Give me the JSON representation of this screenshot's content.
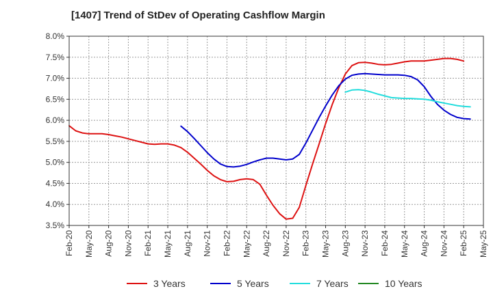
{
  "chart_data": {
    "type": "line",
    "title": "[1407]  Trend of StDev of Operating Cashflow Margin",
    "xlabel": "",
    "ylabel": "",
    "ylim": [
      3.5,
      8.0
    ],
    "y_ticks": [
      "3.5%",
      "4.0%",
      "4.5%",
      "5.0%",
      "5.5%",
      "6.0%",
      "6.5%",
      "7.0%",
      "7.5%",
      "8.0%"
    ],
    "y_tick_values": [
      3.5,
      4.0,
      4.5,
      5.0,
      5.5,
      6.0,
      6.5,
      7.0,
      7.5,
      8.0
    ],
    "x_start": "Feb-20",
    "x_end": "May-25",
    "x_ticks": [
      "Feb-20",
      "May-20",
      "Aug-20",
      "Nov-20",
      "Feb-21",
      "May-21",
      "Aug-21",
      "Nov-21",
      "Feb-22",
      "May-22",
      "Aug-22",
      "Nov-22",
      "Feb-23",
      "May-23",
      "Aug-23",
      "Nov-23",
      "Feb-24",
      "May-24",
      "Aug-24",
      "Nov-24",
      "Feb-25",
      "May-25"
    ],
    "grid": true,
    "legend_position": "bottom",
    "series": [
      {
        "name": "3 Years",
        "color": "#dd1111",
        "points": [
          [
            "Feb-20",
            5.87
          ],
          [
            "Mar-20",
            5.75
          ],
          [
            "Apr-20",
            5.7
          ],
          [
            "May-20",
            5.68
          ],
          [
            "Jun-20",
            5.68
          ],
          [
            "Jul-20",
            5.68
          ],
          [
            "Aug-20",
            5.66
          ],
          [
            "Sep-20",
            5.63
          ],
          [
            "Oct-20",
            5.6
          ],
          [
            "Nov-20",
            5.56
          ],
          [
            "Dec-20",
            5.52
          ],
          [
            "Jan-21",
            5.48
          ],
          [
            "Feb-21",
            5.44
          ],
          [
            "Mar-21",
            5.43
          ],
          [
            "Apr-21",
            5.44
          ],
          [
            "May-21",
            5.44
          ],
          [
            "Jun-21",
            5.41
          ],
          [
            "Jul-21",
            5.35
          ],
          [
            "Aug-21",
            5.24
          ],
          [
            "Sep-21",
            5.1
          ],
          [
            "Oct-21",
            4.96
          ],
          [
            "Nov-21",
            4.81
          ],
          [
            "Dec-21",
            4.68
          ],
          [
            "Jan-22",
            4.59
          ],
          [
            "Feb-22",
            4.54
          ],
          [
            "Mar-22",
            4.55
          ],
          [
            "Apr-22",
            4.59
          ],
          [
            "May-22",
            4.61
          ],
          [
            "Jun-22",
            4.59
          ],
          [
            "Jul-22",
            4.48
          ],
          [
            "Aug-22",
            4.22
          ],
          [
            "Sep-22",
            3.98
          ],
          [
            "Oct-22",
            3.78
          ],
          [
            "Nov-22",
            3.65
          ],
          [
            "Dec-22",
            3.67
          ],
          [
            "Jan-23",
            3.93
          ],
          [
            "Feb-23",
            4.45
          ],
          [
            "Mar-23",
            4.95
          ],
          [
            "Apr-23",
            5.43
          ],
          [
            "May-23",
            5.92
          ],
          [
            "Jun-23",
            6.37
          ],
          [
            "Jul-23",
            6.77
          ],
          [
            "Aug-23",
            7.1
          ],
          [
            "Sep-23",
            7.3
          ],
          [
            "Oct-23",
            7.37
          ],
          [
            "Nov-23",
            7.38
          ],
          [
            "Dec-23",
            7.36
          ],
          [
            "Jan-24",
            7.33
          ],
          [
            "Feb-24",
            7.32
          ],
          [
            "Mar-24",
            7.33
          ],
          [
            "Apr-24",
            7.36
          ],
          [
            "May-24",
            7.39
          ],
          [
            "Jun-24",
            7.41
          ],
          [
            "Jul-24",
            7.41
          ],
          [
            "Aug-24",
            7.41
          ],
          [
            "Sep-24",
            7.43
          ],
          [
            "Oct-24",
            7.45
          ],
          [
            "Nov-24",
            7.47
          ],
          [
            "Dec-24",
            7.47
          ],
          [
            "Jan-25",
            7.45
          ],
          [
            "Feb-25",
            7.41
          ]
        ]
      },
      {
        "name": "5 Years",
        "color": "#0000cc",
        "points": [
          [
            "Jul-21",
            5.86
          ],
          [
            "Aug-21",
            5.73
          ],
          [
            "Sep-21",
            5.57
          ],
          [
            "Oct-21",
            5.4
          ],
          [
            "Nov-21",
            5.23
          ],
          [
            "Dec-21",
            5.08
          ],
          [
            "Jan-22",
            4.96
          ],
          [
            "Feb-22",
            4.9
          ],
          [
            "Mar-22",
            4.89
          ],
          [
            "Apr-22",
            4.91
          ],
          [
            "May-22",
            4.95
          ],
          [
            "Jun-22",
            5.01
          ],
          [
            "Jul-22",
            5.06
          ],
          [
            "Aug-22",
            5.1
          ],
          [
            "Sep-22",
            5.1
          ],
          [
            "Oct-22",
            5.08
          ],
          [
            "Nov-22",
            5.06
          ],
          [
            "Dec-22",
            5.08
          ],
          [
            "Jan-23",
            5.19
          ],
          [
            "Feb-23",
            5.46
          ],
          [
            "Mar-23",
            5.76
          ],
          [
            "Apr-23",
            6.06
          ],
          [
            "May-23",
            6.34
          ],
          [
            "Jun-23",
            6.6
          ],
          [
            "Jul-23",
            6.82
          ],
          [
            "Aug-23",
            6.98
          ],
          [
            "Sep-23",
            7.07
          ],
          [
            "Oct-23",
            7.1
          ],
          [
            "Nov-23",
            7.11
          ],
          [
            "Dec-23",
            7.1
          ],
          [
            "Jan-24",
            7.09
          ],
          [
            "Feb-24",
            7.08
          ],
          [
            "Mar-24",
            7.08
          ],
          [
            "Apr-24",
            7.08
          ],
          [
            "May-24",
            7.07
          ],
          [
            "Jun-24",
            7.04
          ],
          [
            "Jul-24",
            6.96
          ],
          [
            "Aug-24",
            6.8
          ],
          [
            "Sep-24",
            6.57
          ],
          [
            "Oct-24",
            6.38
          ],
          [
            "Nov-24",
            6.24
          ],
          [
            "Dec-24",
            6.14
          ],
          [
            "Jan-25",
            6.07
          ],
          [
            "Feb-25",
            6.04
          ],
          [
            "Mar-25",
            6.03
          ]
        ]
      },
      {
        "name": "7 Years",
        "color": "#22dddd",
        "points": [
          [
            "Aug-23",
            6.67
          ],
          [
            "Sep-23",
            6.72
          ],
          [
            "Oct-23",
            6.73
          ],
          [
            "Nov-23",
            6.71
          ],
          [
            "Dec-23",
            6.67
          ],
          [
            "Jan-24",
            6.62
          ],
          [
            "Feb-24",
            6.58
          ],
          [
            "Mar-24",
            6.54
          ],
          [
            "Apr-24",
            6.53
          ],
          [
            "May-24",
            6.52
          ],
          [
            "Jun-24",
            6.52
          ],
          [
            "Jul-24",
            6.51
          ],
          [
            "Aug-24",
            6.5
          ],
          [
            "Sep-24",
            6.48
          ],
          [
            "Oct-24",
            6.44
          ],
          [
            "Nov-24",
            6.41
          ],
          [
            "Dec-24",
            6.38
          ],
          [
            "Jan-25",
            6.35
          ],
          [
            "Feb-25",
            6.33
          ],
          [
            "Mar-25",
            6.32
          ]
        ]
      },
      {
        "name": "10 Years",
        "color": "#228822",
        "points": []
      }
    ]
  }
}
